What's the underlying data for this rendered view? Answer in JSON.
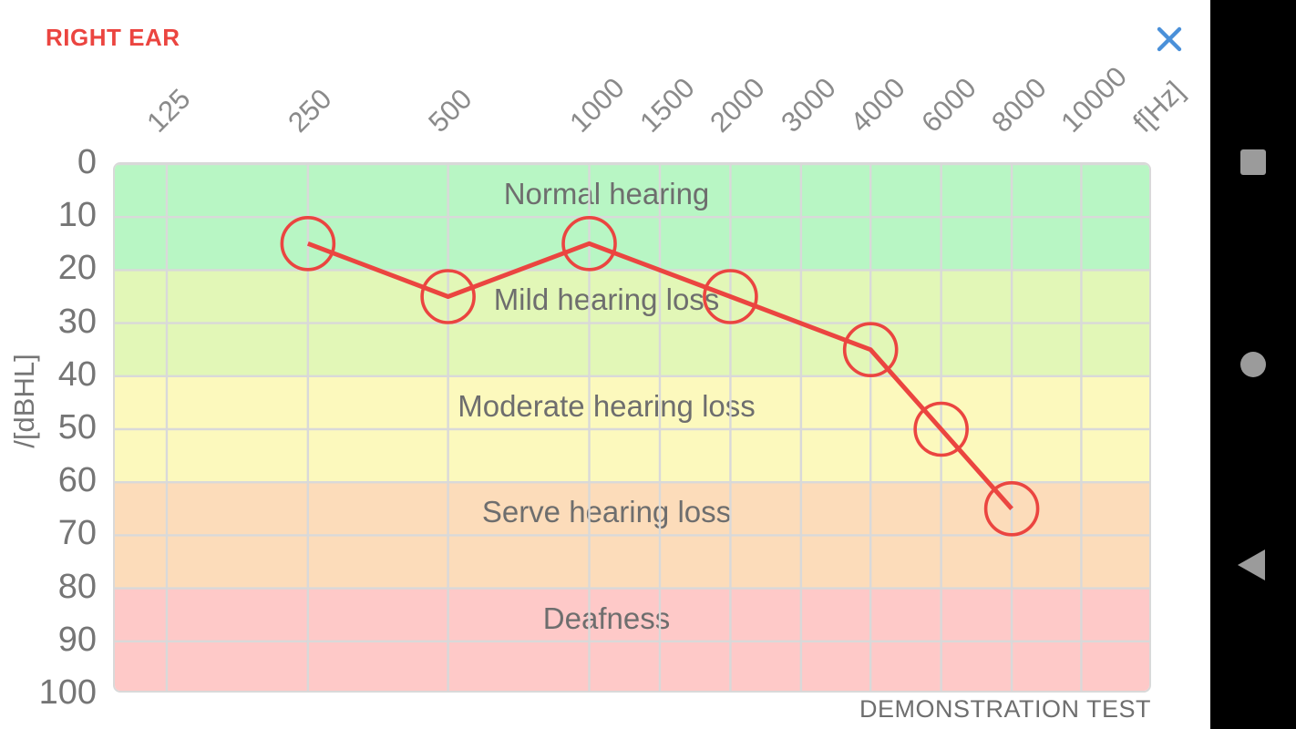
{
  "app": {
    "title": "RIGHT EAR"
  },
  "colors": {
    "accent_red": "#eb4540",
    "close_blue": "#4a90d9",
    "grid": "#d9d9d9",
    "tick_gray": "#8a8a8a",
    "axis_gray": "#757575",
    "band_label_gray": "#6e6e6e",
    "nav_icon_gray": "#9b9b9b",
    "nav_bg": "#000000"
  },
  "chart_data": {
    "type": "line",
    "title": "RIGHT EAR",
    "x_ticks": [
      "125",
      "250",
      "500",
      "1000",
      "1500",
      "2000",
      "3000",
      "4000",
      "6000",
      "8000",
      "10000"
    ],
    "x_unit": "f[Hz]",
    "y_ticks": [
      0,
      10,
      20,
      30,
      40,
      50,
      60,
      70,
      80,
      90,
      100
    ],
    "y_unit": "/[dBHL]",
    "ylim": [
      0,
      100
    ],
    "y_axis_inverted": true,
    "grid": true,
    "bands": [
      {
        "label": "Normal hearing",
        "from": 0,
        "to": 20,
        "color": "#b8f6c4"
      },
      {
        "label": "Mild hearing loss",
        "from": 20,
        "to": 40,
        "color": "#e2f7b7"
      },
      {
        "label": "Moderate hearing loss",
        "from": 40,
        "to": 60,
        "color": "#fcf9bd"
      },
      {
        "label": "Serve hearing loss",
        "from": 60,
        "to": 80,
        "color": "#fcdcba"
      },
      {
        "label": "Deafness",
        "from": 80,
        "to": 100,
        "color": "#fec9c8"
      }
    ],
    "series": [
      {
        "name": "right-ear-threshold",
        "color": "#eb4540",
        "marker": "circle-outline",
        "points": [
          {
            "f": 250,
            "db": 15
          },
          {
            "f": 500,
            "db": 25
          },
          {
            "f": 1000,
            "db": 15
          },
          {
            "f": 2000,
            "db": 25
          },
          {
            "f": 4000,
            "db": 35
          },
          {
            "f": 6000,
            "db": 50
          },
          {
            "f": 8000,
            "db": 65
          }
        ]
      }
    ],
    "footnote": "DEMONSTRATION TEST"
  },
  "nav_bar": {
    "icons": [
      {
        "name": "overview-square-icon"
      },
      {
        "name": "home-circle-icon"
      },
      {
        "name": "back-triangle-icon"
      }
    ]
  }
}
